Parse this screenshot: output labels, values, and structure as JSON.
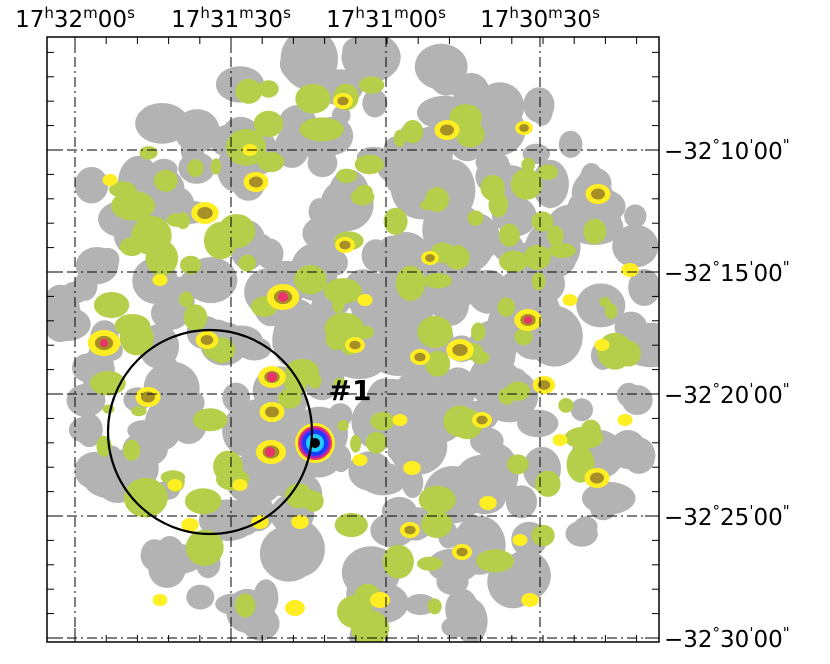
{
  "chart_data": {
    "type": "heatmap",
    "title": "",
    "xlabel": "",
    "ylabel": "",
    "x_axis": {
      "coordinate": "right-ascension",
      "direction": "decreasing-to-right",
      "ticks": [
        {
          "h": "17",
          "m": "32",
          "s": "00"
        },
        {
          "h": "17",
          "m": "31",
          "s": "30"
        },
        {
          "h": "17",
          "m": "31",
          "s": "00"
        },
        {
          "h": "17",
          "m": "30",
          "s": "30"
        }
      ],
      "range": [
        {
          "h": "17",
          "m": "32",
          "s": "05"
        },
        {
          "h": "17",
          "m": "30",
          "s": "08"
        }
      ]
    },
    "y_axis": {
      "coordinate": "declination",
      "ticks": [
        {
          "deg": "−32",
          "min": "10",
          "sec": "00"
        },
        {
          "deg": "−32",
          "min": "15",
          "sec": "00"
        },
        {
          "deg": "−32",
          "min": "20",
          "sec": "00"
        },
        {
          "deg": "−32",
          "min": "25",
          "sec": "00"
        },
        {
          "deg": "−32",
          "min": "30",
          "sec": "00"
        }
      ],
      "range": [
        "−32°06'",
        "−32°30'"
      ]
    },
    "grid": true,
    "grid_style": "dash-dot",
    "contour_levels": [
      "#b3b3b3",
      "#b5cf4b",
      "#ffee22",
      "#a68f26",
      "#e8336b",
      "#9b22c9",
      "#1a3cff",
      "#22ccff"
    ],
    "annotations": [
      {
        "label": "#1",
        "ra": "17h31m08s",
        "dec": "−32°21'"
      }
    ],
    "circle": {
      "center_ra": "17h31m43s",
      "center_dec": "−32°21'20\"",
      "radius_arcmin": 4.2
    },
    "colors": {
      "axes": "#000000",
      "background": "#ffffff",
      "grid": "#000000"
    }
  }
}
